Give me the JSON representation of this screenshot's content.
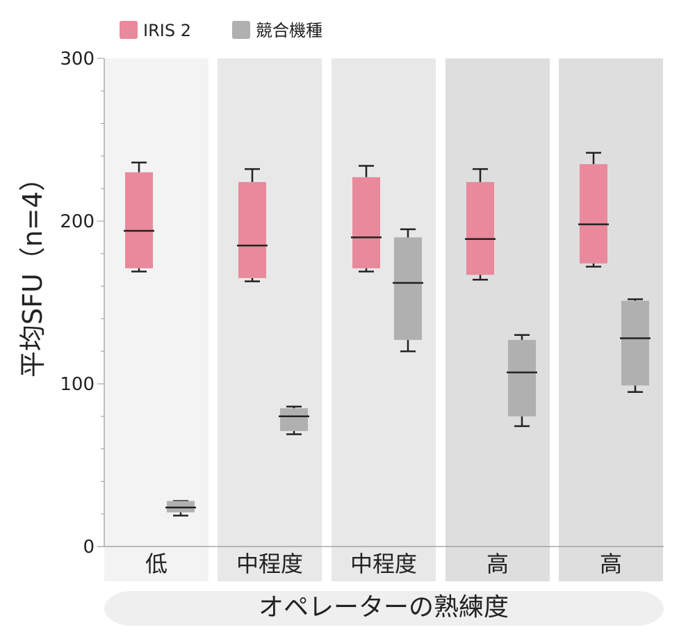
{
  "chart_data": {
    "type": "box",
    "ylabel": "平均SFU（n=4）",
    "xlabel": "オペレーターの熟練度",
    "ylim": [
      0,
      300
    ],
    "yticks": [
      0,
      100,
      200,
      300
    ],
    "legend_position": "top-left",
    "categories": [
      "低",
      "中程度",
      "中程度",
      "高",
      "高"
    ],
    "panel_colors": [
      "#f3f3f3",
      "#e8e8e8",
      "#e8e8e8",
      "#dedede",
      "#dedede"
    ],
    "series": [
      {
        "name": "IRIS 2",
        "color": "#e8899c",
        "boxes": [
          {
            "min": 169,
            "q1": 171,
            "median": 194,
            "q3": 230,
            "max": 236
          },
          {
            "min": 163,
            "q1": 165,
            "median": 185,
            "q3": 224,
            "max": 232
          },
          {
            "min": 169,
            "q1": 171,
            "median": 190,
            "q3": 227,
            "max": 234
          },
          {
            "min": 164,
            "q1": 167,
            "median": 189,
            "q3": 224,
            "max": 232
          },
          {
            "min": 172,
            "q1": 174,
            "median": 198,
            "q3": 235,
            "max": 242
          }
        ]
      },
      {
        "name": "競合機種",
        "color": "#b0b0b0",
        "boxes": [
          {
            "min": 19,
            "q1": 21,
            "median": 24,
            "q3": 28,
            "max": 28
          },
          {
            "min": 69,
            "q1": 71,
            "median": 80,
            "q3": 85,
            "max": 86
          },
          {
            "min": 120,
            "q1": 127,
            "median": 162,
            "q3": 190,
            "max": 195
          },
          {
            "min": 74,
            "q1": 80,
            "median": 107,
            "q3": 127,
            "max": 130
          },
          {
            "min": 95,
            "q1": 99,
            "median": 128,
            "q3": 151,
            "max": 152
          }
        ]
      }
    ]
  }
}
